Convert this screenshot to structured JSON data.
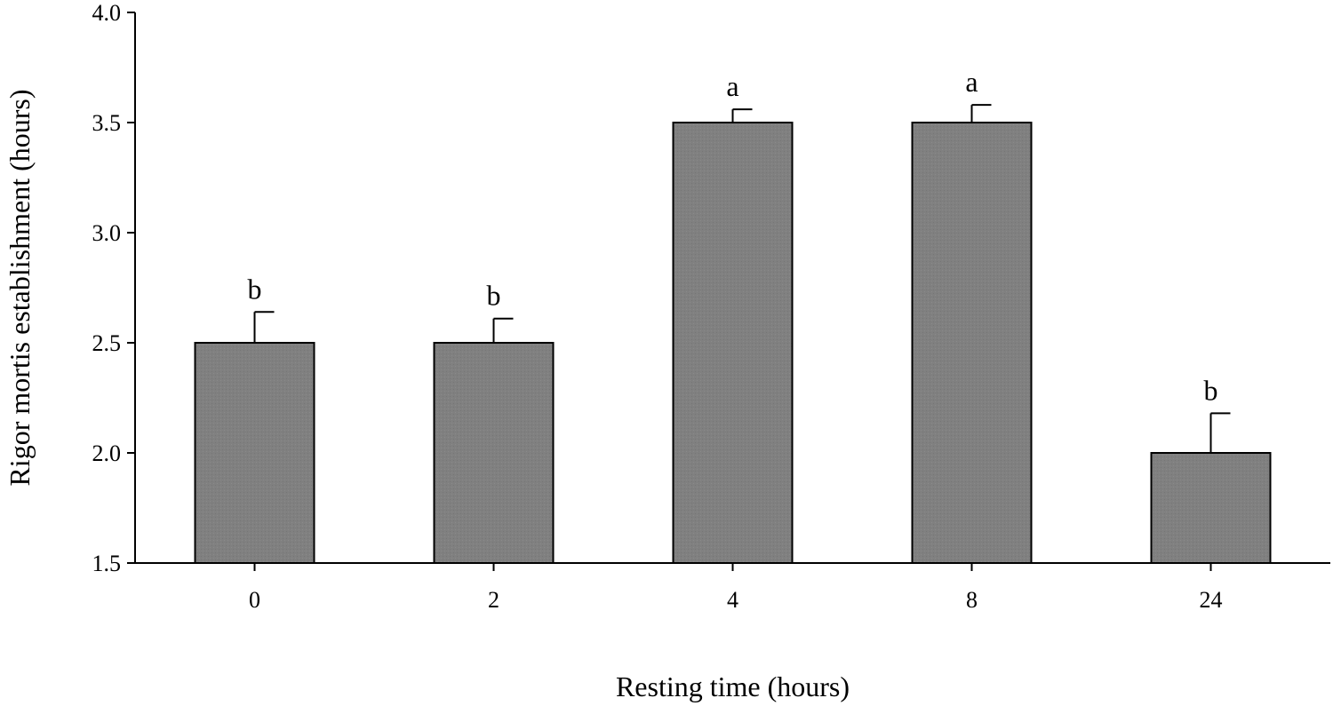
{
  "chart_data": {
    "type": "bar",
    "categories": [
      "0",
      "2",
      "4",
      "8",
      "24"
    ],
    "values": [
      2.5,
      2.5,
      3.5,
      3.5,
      2.0
    ],
    "errors": [
      0.14,
      0.11,
      0.06,
      0.08,
      0.18
    ],
    "significance": [
      "b",
      "b",
      "a",
      "a",
      "b"
    ],
    "xlabel": "Resting time (hours)",
    "ylabel": "Rigor mortis establishment  (hours)",
    "ylim": [
      1.5,
      4.0
    ],
    "yticks": [
      "1.5",
      "2.0",
      "2.5",
      "3.0",
      "3.5",
      "4.0"
    ],
    "grid": false,
    "bar_color": "#808080"
  }
}
